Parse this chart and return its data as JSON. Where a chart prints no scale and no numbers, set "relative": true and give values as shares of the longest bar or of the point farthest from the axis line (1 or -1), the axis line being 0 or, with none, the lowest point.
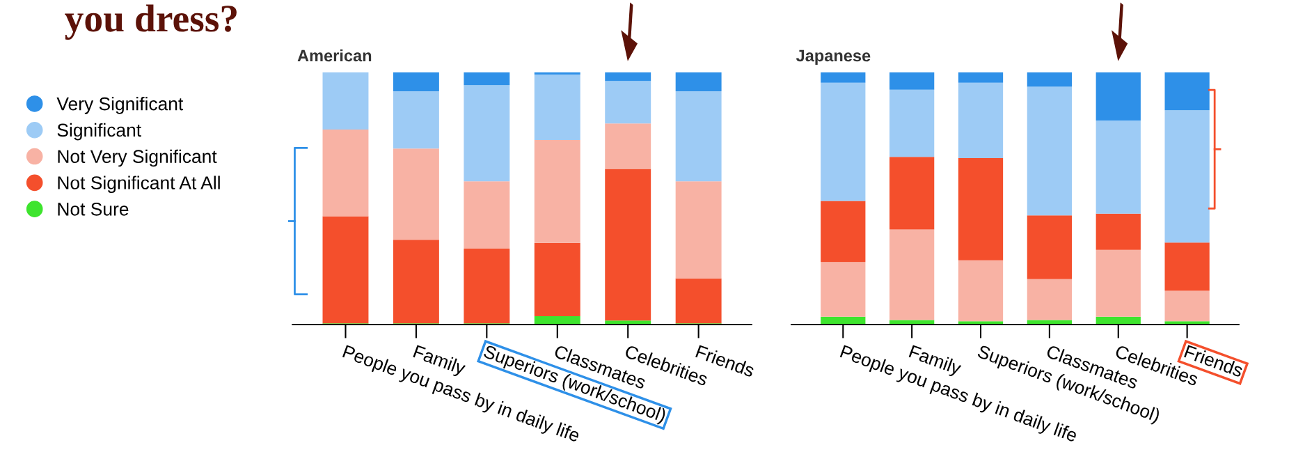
{
  "chart_data": [
    {
      "type": "bar",
      "title": "you dress?",
      "subtitle": "American",
      "stacked": true,
      "relative": true,
      "legend": "left",
      "grid": false,
      "categories": [
        "People you pass by in daily life",
        "Family",
        "Superiors (work/school)",
        "Classmates",
        "Celebrities",
        "Friends"
      ],
      "series": [
        {
          "name": "Not Sure",
          "color": "#3ee42e",
          "values": [
            0.005,
            0.005,
            0.005,
            0.033,
            0.016,
            0.005
          ]
        },
        {
          "name": "Not Significant At All",
          "color": "#f44f2c",
          "values": [
            0.424,
            0.331,
            0.296,
            0.291,
            0.601,
            0.178
          ]
        },
        {
          "name": "Not Very Significant",
          "color": "#f8b2a4",
          "values": [
            0.344,
            0.362,
            0.267,
            0.408,
            0.18,
            0.385
          ]
        },
        {
          "name": "Significant",
          "color": "#9dcbf5",
          "values": [
            0.227,
            0.227,
            0.381,
            0.259,
            0.169,
            0.357
          ]
        },
        {
          "name": "Very Significant",
          "color": "#2e90e8",
          "values": [
            0,
            0.075,
            0.051,
            0.009,
            0.034,
            0.075
          ]
        }
      ]
    },
    {
      "type": "bar",
      "subtitle": "Japanese",
      "stacked": true,
      "relative": true,
      "grid": false,
      "categories": [
        "People you pass by in daily life",
        "Family",
        "Superiors (work/school)",
        "Classmates",
        "Celebrities",
        "Friends"
      ],
      "series": [
        {
          "color": "#3ee42e",
          "values": [
            0.031,
            0.018,
            0.013,
            0.018,
            0.031,
            0.013
          ]
        },
        {
          "color": "#f8b2a4",
          "values": [
            0.217,
            0.359,
            0.242,
            0.162,
            0.265,
            0.121
          ]
        },
        {
          "color": "#f44f2c",
          "values": [
            0.242,
            0.288,
            0.405,
            0.253,
            0.144,
            0.191
          ]
        },
        {
          "color": "#9dcbf5",
          "values": [
            0.469,
            0.266,
            0.299,
            0.51,
            0.369,
            0.525
          ]
        },
        {
          "color": "#2e90e8",
          "values": [
            0.041,
            0.069,
            0.041,
            0.057,
            0.191,
            0.15
          ]
        }
      ]
    }
  ]
}
